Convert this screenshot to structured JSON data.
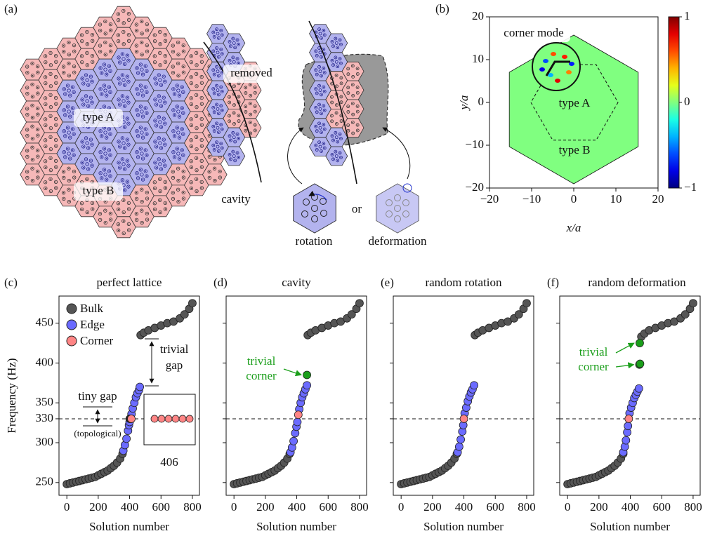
{
  "diagram": {
    "label": "(a)",
    "type_a": "type A",
    "type_b": "type B",
    "removed": "removed",
    "cavity": "cavity",
    "rotation": "rotation",
    "or": "or",
    "deformation": "deformation"
  },
  "chart_data": [
    {
      "type": "field",
      "label": "(b)",
      "xlabel": "x/a",
      "ylabel": "y/a",
      "xlim": [
        -20,
        20
      ],
      "ylim": [
        -20,
        20
      ],
      "xticks": [
        {
          "value": -20,
          "label": "−20"
        },
        {
          "value": -10,
          "label": "−10"
        },
        0,
        10,
        20
      ],
      "yticks": [
        {
          "value": -20,
          "label": "−20"
        },
        {
          "value": -10,
          "label": "−10"
        },
        0,
        10,
        20
      ],
      "colormap": "jet",
      "field_value": 0,
      "colorbar": {
        "lim": [
          -1,
          1
        ],
        "ticks": [
          {
            "value": -1,
            "label": "−1"
          },
          0,
          1
        ]
      },
      "annotations": [
        "corner mode",
        "type A",
        "type B"
      ]
    },
    {
      "type": "scatter",
      "label": "(c)",
      "title": "perfect lattice",
      "xlabel": "Solution number",
      "ylabel": "Frequency (Hz)",
      "xlim": [
        -50,
        845
      ],
      "ylim": [
        234,
        484
      ],
      "xticks": [
        0,
        200,
        400,
        600,
        800
      ],
      "yticks": [
        250,
        300,
        330,
        350,
        400,
        450
      ],
      "ytick_labels": true,
      "hline": 330,
      "legend": "upper left",
      "series": [
        {
          "name": "Bulk",
          "color": "#555555",
          "x": [
            0,
            20,
            40,
            60,
            80,
            100,
            120,
            140,
            160,
            180,
            200,
            220,
            240,
            260,
            280,
            300,
            320,
            340,
            355,
            470,
            490,
            520,
            560,
            600,
            640,
            680,
            720,
            750,
            780,
            800
          ],
          "values": [
            248,
            249,
            250,
            251,
            252,
            253,
            254,
            255,
            256,
            257,
            259,
            261,
            263,
            265,
            268,
            271,
            275,
            280,
            286,
            435,
            438,
            441,
            444,
            447,
            450,
            452,
            456,
            461,
            468,
            475
          ]
        },
        {
          "name": "Edge",
          "color": "#6b6bff",
          "x": [
            360,
            370,
            380,
            390,
            396,
            400,
            412,
            420,
            430,
            440,
            450,
            460,
            465
          ],
          "values": [
            290,
            297,
            305,
            315,
            322,
            326,
            336,
            343,
            350,
            357,
            362,
            366,
            370
          ]
        },
        {
          "name": "Corner",
          "color": "#ff8585",
          "x": [
            401,
            403,
            405,
            407,
            409,
            411
          ],
          "values": [
            330,
            330,
            330,
            330,
            330,
            330
          ]
        }
      ],
      "annotations": [
        "tiny gap",
        "(topological)",
        "trivial",
        "gap",
        "406"
      ]
    },
    {
      "type": "scatter",
      "label": "(d)",
      "title": "cavity",
      "xlabel": "Solution number",
      "xlim": [
        -50,
        845
      ],
      "ylim": [
        234,
        484
      ],
      "xticks": [
        0,
        200,
        400,
        600,
        800
      ],
      "yticks": [
        250,
        300,
        330,
        350,
        400,
        450
      ],
      "ytick_labels": false,
      "hline": 330,
      "series": [
        {
          "color": "#555555",
          "x": [
            0,
            20,
            40,
            60,
            80,
            100,
            120,
            140,
            160,
            180,
            200,
            220,
            240,
            260,
            280,
            300,
            320,
            340,
            355,
            470,
            490,
            520,
            560,
            600,
            640,
            680,
            720,
            750,
            780,
            800
          ],
          "values": [
            248,
            249,
            250,
            251,
            252,
            253,
            254,
            255,
            256,
            257,
            259,
            261,
            263,
            265,
            268,
            271,
            275,
            280,
            286,
            435,
            438,
            441,
            444,
            447,
            450,
            452,
            456,
            461,
            468,
            475
          ]
        },
        {
          "color": "#6b6bff",
          "x": [
            360,
            370,
            380,
            390,
            398,
            404,
            416,
            425,
            435,
            445,
            455,
            465
          ],
          "values": [
            288,
            294,
            302,
            312,
            320,
            326,
            342,
            350,
            357,
            362,
            367,
            372
          ]
        },
        {
          "color": "#ff8585",
          "x": [
            410
          ],
          "values": [
            335
          ]
        },
        {
          "color": "#1a9e1a",
          "x": [
            465
          ],
          "values": [
            385
          ]
        }
      ],
      "annotations": [
        "trivial",
        "corner"
      ]
    },
    {
      "type": "scatter",
      "label": "(e)",
      "title": "random rotation",
      "xlabel": "Solution number",
      "xlim": [
        -50,
        845
      ],
      "ylim": [
        234,
        484
      ],
      "xticks": [
        0,
        200,
        400,
        600,
        800
      ],
      "yticks": [
        250,
        300,
        330,
        350,
        400,
        450
      ],
      "ytick_labels": false,
      "hline": 330,
      "series": [
        {
          "color": "#555555",
          "x": [
            0,
            20,
            40,
            60,
            80,
            100,
            120,
            140,
            160,
            180,
            200,
            220,
            240,
            260,
            280,
            300,
            320,
            340,
            355,
            470,
            490,
            520,
            560,
            600,
            640,
            680,
            720,
            750,
            780,
            800
          ],
          "values": [
            248,
            249,
            250,
            251,
            252,
            253,
            254,
            255,
            256,
            257,
            259,
            261,
            263,
            265,
            268,
            271,
            275,
            280,
            286,
            435,
            438,
            441,
            444,
            447,
            450,
            452,
            456,
            461,
            468,
            475
          ]
        },
        {
          "color": "#6b6bff",
          "x": [
            360,
            370,
            380,
            390,
            396,
            405,
            415,
            425,
            435,
            445,
            455,
            465
          ],
          "values": [
            288,
            295,
            304,
            314,
            322,
            337,
            344,
            352,
            358,
            363,
            367,
            372
          ]
        },
        {
          "color": "#ff8585",
          "x": [
            400
          ],
          "values": [
            330
          ]
        }
      ],
      "annotations": []
    },
    {
      "type": "scatter",
      "label": "(f)",
      "title": "random deformation",
      "xlabel": "Solution number",
      "xlim": [
        -50,
        845
      ],
      "ylim": [
        234,
        484
      ],
      "xticks": [
        0,
        200,
        400,
        600,
        800
      ],
      "yticks": [
        250,
        300,
        330,
        350,
        400,
        450
      ],
      "ytick_labels": false,
      "hline": 330,
      "series": [
        {
          "color": "#555555",
          "x": [
            0,
            20,
            40,
            60,
            80,
            100,
            120,
            140,
            160,
            180,
            200,
            220,
            240,
            260,
            280,
            300,
            320,
            340,
            355,
            470,
            490,
            520,
            560,
            600,
            640,
            680,
            720,
            750,
            780,
            800
          ],
          "values": [
            248,
            249,
            250,
            251,
            252,
            253,
            254,
            255,
            256,
            257,
            259,
            261,
            263,
            265,
            268,
            271,
            275,
            280,
            286,
            433,
            437,
            441,
            444,
            447,
            450,
            452,
            456,
            461,
            468,
            475
          ]
        },
        {
          "color": "#6b6bff",
          "x": [
            355,
            365,
            372,
            380,
            385,
            395,
            405,
            415,
            425,
            435,
            445,
            455
          ],
          "values": [
            288,
            295,
            303,
            313,
            321,
            337,
            344,
            350,
            356,
            360,
            364,
            368
          ]
        },
        {
          "color": "#ff8585",
          "x": [
            390
          ],
          "values": [
            330
          ]
        },
        {
          "color": "#1a9e1a",
          "x": [
            460,
            458,
            462
          ],
          "values": [
            425,
            398,
            399
          ]
        }
      ],
      "annotations": [
        "trivial",
        "corner"
      ]
    }
  ]
}
